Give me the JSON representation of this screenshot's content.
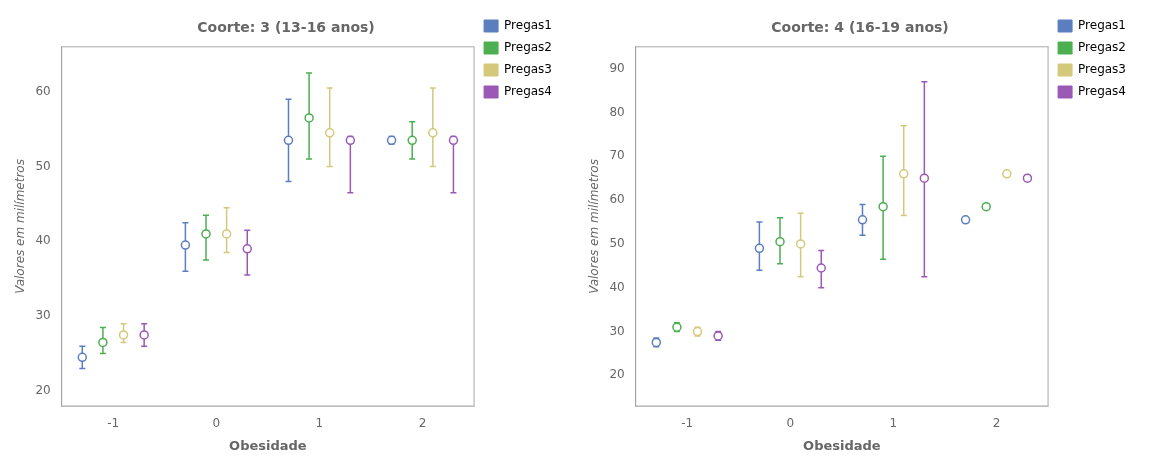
{
  "chart_data": [
    {
      "type": "scatter",
      "title": "Coorte: 3 (13-16 anos)",
      "xlabel": "Obesidade",
      "ylabel": "Valores em milímetros",
      "categories": [
        "-1",
        "0",
        "1",
        "2"
      ],
      "ylim": [
        18,
        66
      ],
      "yticks": [
        20,
        30,
        40,
        50,
        60
      ],
      "grid": false,
      "legend": "right",
      "marker": "circle",
      "series": [
        {
          "name": "Pregas1",
          "color": "#5b7fbe",
          "values": [
            24.5,
            39.5,
            53.5,
            53.5
          ],
          "err_lo": [
            1.5,
            3.5,
            5.5,
            0.5
          ],
          "err_hi": [
            1.5,
            3.0,
            5.5,
            0.5
          ]
        },
        {
          "name": "Pregas2",
          "color": "#4caf50",
          "values": [
            26.5,
            41.0,
            56.5,
            53.5
          ],
          "err_lo": [
            1.5,
            3.5,
            5.5,
            2.5
          ],
          "err_hi": [
            2.0,
            2.5,
            6.0,
            2.5
          ]
        },
        {
          "name": "Pregas3",
          "color": "#d4c87a",
          "values": [
            27.5,
            41.0,
            54.5,
            54.5
          ],
          "err_lo": [
            1.0,
            2.5,
            4.5,
            4.5
          ],
          "err_hi": [
            1.5,
            3.5,
            6.0,
            6.0
          ]
        },
        {
          "name": "Pregas4",
          "color": "#9b59b6",
          "values": [
            27.5,
            39.0,
            53.5,
            53.5
          ],
          "err_lo": [
            1.5,
            3.5,
            7.0,
            7.0
          ],
          "err_hi": [
            1.5,
            2.5,
            0.5,
            0.5
          ]
        }
      ]
    },
    {
      "type": "scatter",
      "title": "Coorte: 4 (16-19 anos)",
      "xlabel": "Obesidade",
      "ylabel": "Valores em milímetros",
      "categories": [
        "-1",
        "0",
        "1",
        "2"
      ],
      "ylim": [
        13,
        95
      ],
      "yticks": [
        20,
        30,
        40,
        50,
        60,
        70,
        80,
        90
      ],
      "grid": false,
      "legend": "right",
      "marker": "circle",
      "series": [
        {
          "name": "Pregas1",
          "color": "#5b7fbe",
          "values": [
            27.5,
            49.0,
            55.5,
            55.5
          ],
          "err_lo": [
            1.0,
            5.0,
            3.5,
            0.5
          ],
          "err_hi": [
            1.0,
            6.0,
            3.5,
            0.5
          ]
        },
        {
          "name": "Pregas2",
          "color": "#4caf50",
          "values": [
            31.0,
            50.5,
            58.5,
            58.5
          ],
          "err_lo": [
            1.0,
            5.0,
            12.0,
            0.5
          ],
          "err_hi": [
            1.0,
            5.5,
            11.5,
            0.5
          ]
        },
        {
          "name": "Pregas3",
          "color": "#d4c87a",
          "values": [
            30.0,
            50.0,
            66.0,
            66.0
          ],
          "err_lo": [
            1.0,
            7.5,
            9.5,
            0.5
          ],
          "err_hi": [
            1.0,
            7.0,
            11.0,
            0.5
          ]
        },
        {
          "name": "Pregas4",
          "color": "#9b59b6",
          "values": [
            29.0,
            44.5,
            65.0,
            65.0
          ],
          "err_lo": [
            1.0,
            4.5,
            22.5,
            0.5
          ],
          "err_hi": [
            1.0,
            4.0,
            22.0,
            0.5
          ]
        }
      ]
    }
  ]
}
